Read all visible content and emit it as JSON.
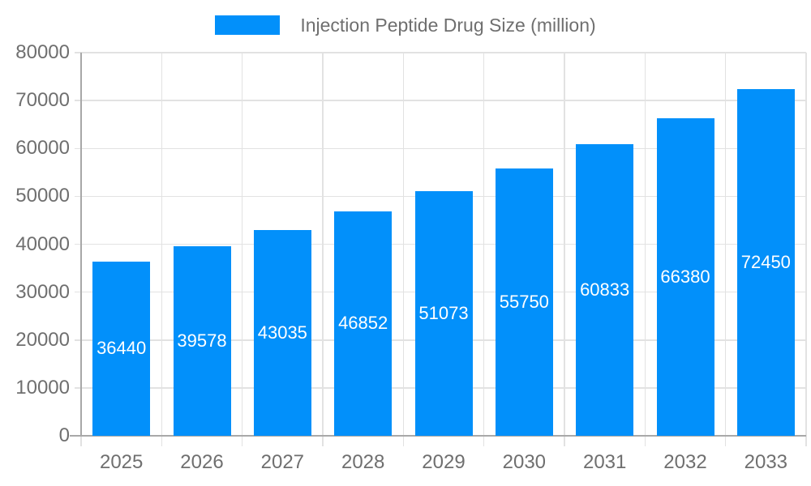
{
  "legend": {
    "label": "Injection Peptide Drug Size (million)"
  },
  "chart_data": {
    "type": "bar",
    "title": "",
    "xlabel": "",
    "ylabel": "",
    "categories": [
      "2025",
      "2026",
      "2027",
      "2028",
      "2029",
      "2030",
      "2031",
      "2032",
      "2033"
    ],
    "series": [
      {
        "name": "Injection Peptide Drug Size (million)",
        "values": [
          36440,
          39578,
          43035,
          46852,
          51073,
          55750,
          60833,
          66380,
          72450
        ]
      }
    ],
    "ylim": [
      0,
      80000
    ],
    "ytick_step": 10000,
    "yticks": [
      0,
      10000,
      20000,
      30000,
      40000,
      50000,
      60000,
      70000,
      80000
    ],
    "grid": true,
    "legend_position": "top-center",
    "bar_labels_inside": true,
    "colors": {
      "bar": "#0290fa",
      "axis_line": "#a8a8a8",
      "grid_line": "#e2e2e2",
      "tick_text": "#6f6f6f",
      "bar_label_text": "#ffffff",
      "background": "#ffffff"
    }
  }
}
